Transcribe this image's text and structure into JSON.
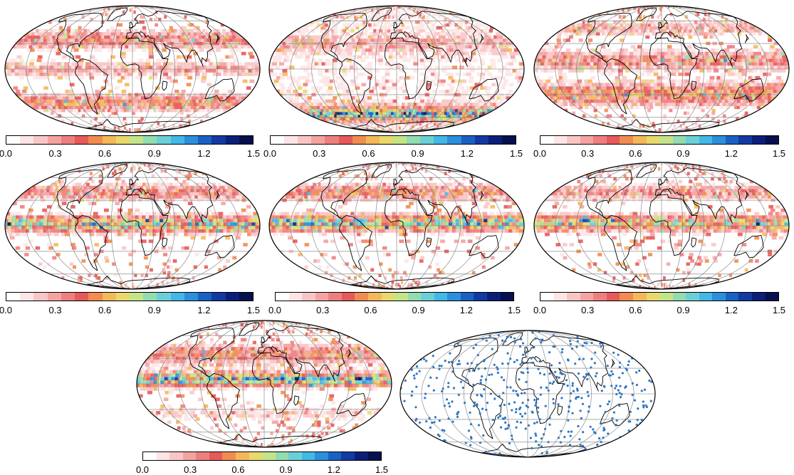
{
  "colorbar": {
    "ticks": [
      "0.0",
      "0.3",
      "0.6",
      "0.9",
      "1.2",
      "1.5"
    ],
    "min": 0.0,
    "max": 1.5,
    "colors": [
      "#ffffff",
      "#fde5e5",
      "#f9c6c6",
      "#f4a3a3",
      "#ee7f7f",
      "#e65a5a",
      "#f08c52",
      "#f4b85a",
      "#e9d96c",
      "#c4e48a",
      "#93dcb0",
      "#6bd0d6",
      "#43b7e6",
      "#2b8fdc",
      "#1a61c4",
      "#123aa0",
      "#0b1f78",
      "#06104f"
    ]
  },
  "panels": [
    {
      "id": "map-1",
      "kind": "heatmap",
      "colorbar": true
    },
    {
      "id": "map-2",
      "kind": "heatmap",
      "colorbar": true
    },
    {
      "id": "map-3",
      "kind": "heatmap",
      "colorbar": true
    },
    {
      "id": "map-4",
      "kind": "heatmap",
      "colorbar": true
    },
    {
      "id": "map-5",
      "kind": "heatmap",
      "colorbar": true
    },
    {
      "id": "map-6",
      "kind": "heatmap",
      "colorbar": true
    },
    {
      "id": "map-7",
      "kind": "heatmap",
      "colorbar": true
    },
    {
      "id": "map-8",
      "kind": "station-dots",
      "colorbar": false,
      "dot_color": "#2f78c4"
    }
  ],
  "projection": "Mollweide"
}
